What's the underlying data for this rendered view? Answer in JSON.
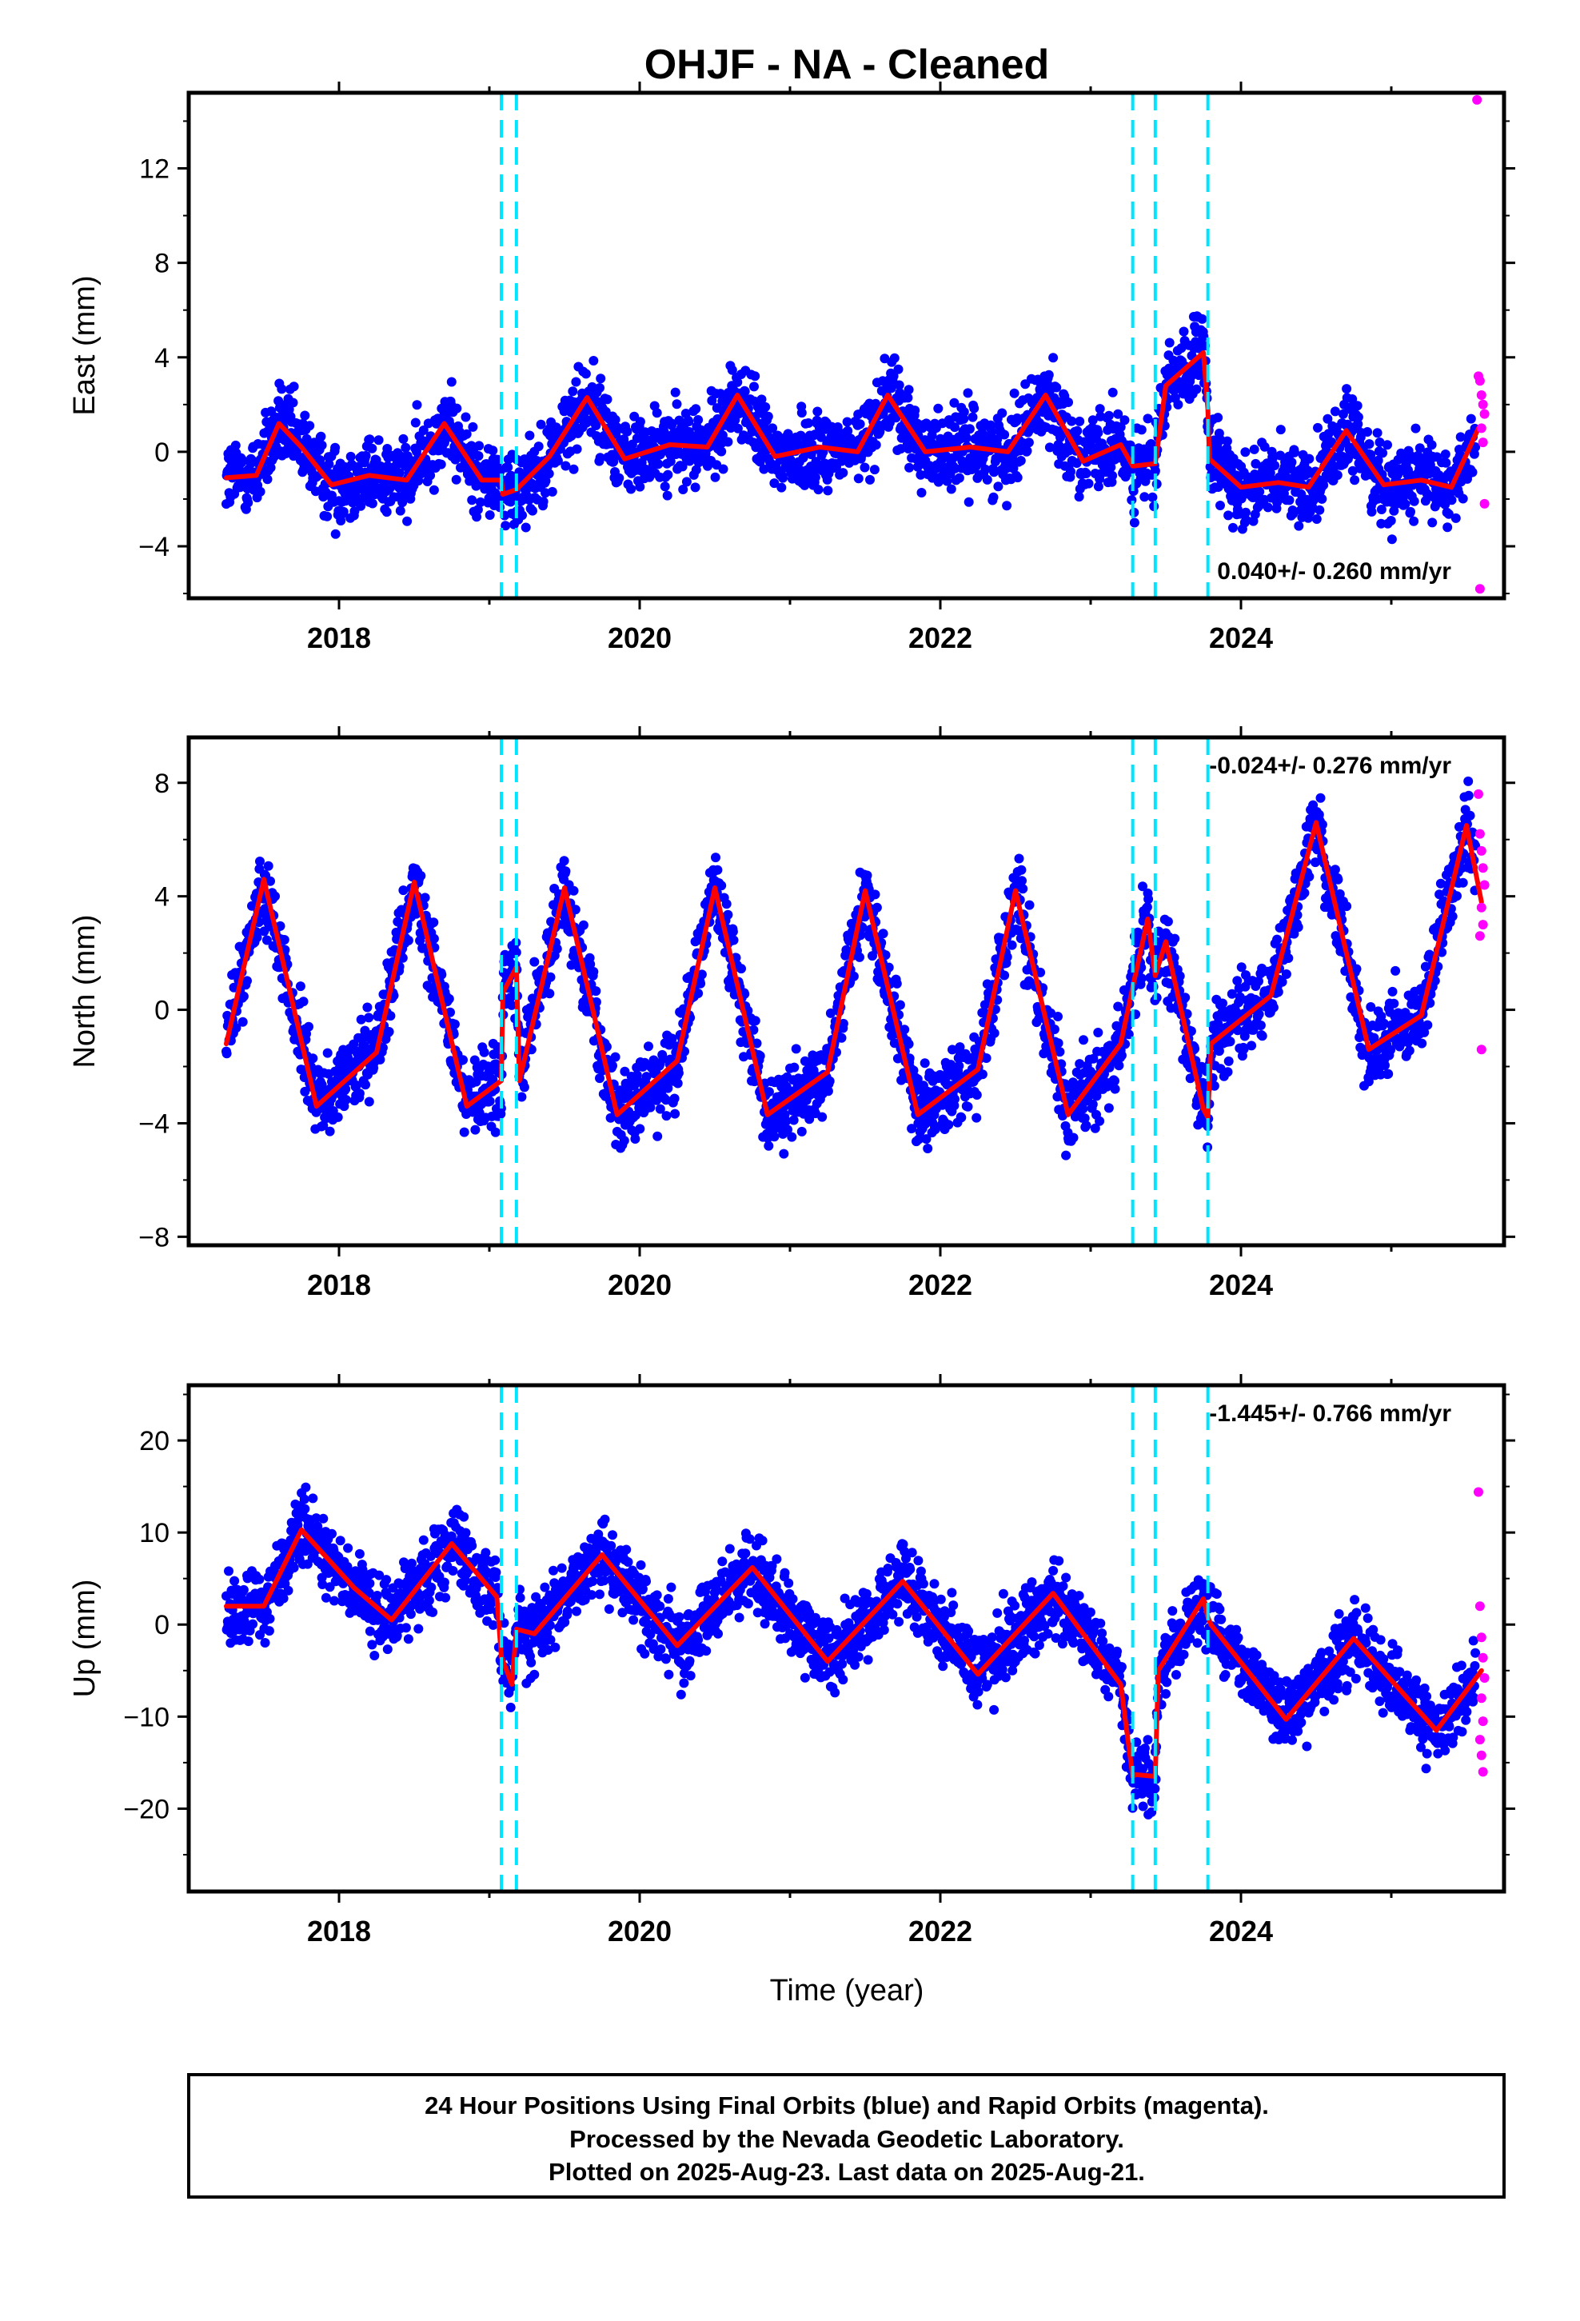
{
  "title": "OHJF  - NA - Cleaned",
  "xlabel": "Time (year)",
  "footer": {
    "line1": "24 Hour Positions Using Final Orbits (blue) and Rapid Orbits (magenta).",
    "line2": "Processed by the Nevada Geodetic Laboratory.",
    "line3": "Plotted on 2025-Aug-23. Last data on 2025-Aug-21."
  },
  "colors": {
    "final_orbits": "#0000ff",
    "rapid_orbits": "#ff00ff",
    "model_fit": "#ff0000",
    "equipment_change": "#00e5ff"
  },
  "chart_data": [
    {
      "type": "scatter",
      "name": "East",
      "ylabel": "East (mm)",
      "rate_text": "0.040+/- 0.260 mm/yr",
      "rate_position": "bottom-right",
      "xlim": [
        2017.0,
        2025.75
      ],
      "ylim": [
        -6.2,
        15.2
      ],
      "yticks": [
        -4,
        0,
        4,
        8,
        12
      ],
      "xticks": [
        2018,
        2020,
        2022,
        2024
      ],
      "grid": false,
      "event_lines": [
        2019.08,
        2019.18,
        2023.28,
        2023.43,
        2023.78
      ],
      "fit_curve": {
        "x": [
          2017.25,
          2017.45,
          2017.6,
          2017.75,
          2017.95,
          2018.2,
          2018.45,
          2018.7,
          2018.95,
          2019.08,
          2019.09,
          2019.18,
          2019.4,
          2019.65,
          2019.9,
          2020.2,
          2020.45,
          2020.65,
          2020.9,
          2021.2,
          2021.45,
          2021.65,
          2021.9,
          2022.2,
          2022.45,
          2022.7,
          2022.95,
          2023.2,
          2023.28,
          2023.29,
          2023.43,
          2023.5,
          2023.75,
          2023.78,
          2023.79,
          2024.0,
          2024.25,
          2024.45,
          2024.7,
          2024.95,
          2025.2,
          2025.4,
          2025.58
        ],
        "y": [
          -1.1,
          -1.0,
          1.2,
          0.2,
          -1.4,
          -1.0,
          -1.2,
          1.2,
          -1.2,
          -1.2,
          -1.8,
          -1.6,
          -0.2,
          2.3,
          -0.3,
          0.3,
          0.2,
          2.4,
          -0.2,
          0.2,
          0.0,
          2.4,
          0.0,
          0.2,
          0.0,
          2.4,
          -0.4,
          0.3,
          -0.6,
          -0.6,
          -0.5,
          2.8,
          4.2,
          1.8,
          -0.3,
          -1.5,
          -1.3,
          -1.5,
          0.9,
          -1.4,
          -1.2,
          -1.5,
          1.0
        ]
      },
      "rapid_points": {
        "x": [
          2025.57,
          2025.58,
          2025.59,
          2025.6,
          2025.61,
          2025.62,
          2025.6,
          2025.61,
          2025.62,
          2025.59
        ],
        "y": [
          14.9,
          3.2,
          3.0,
          2.4,
          2.0,
          1.6,
          1.0,
          0.4,
          -2.2,
          -5.8
        ]
      }
    },
    {
      "type": "scatter",
      "name": "North",
      "ylabel": "North (mm)",
      "rate_text": "-0.024+/- 0.276 mm/yr",
      "rate_position": "top-right",
      "xlim": [
        2017.0,
        2025.75
      ],
      "ylim": [
        -8.3,
        9.6
      ],
      "yticks": [
        -8,
        -4,
        0,
        4,
        8
      ],
      "xticks": [
        2018,
        2020,
        2022,
        2024
      ],
      "grid": false,
      "event_lines": [
        2019.08,
        2019.18,
        2023.28,
        2023.43,
        2023.78
      ],
      "fit_curve": {
        "x": [
          2017.25,
          2017.5,
          2017.85,
          2018.25,
          2018.5,
          2018.85,
          2019.08,
          2019.09,
          2019.18,
          2019.2,
          2019.5,
          2019.85,
          2020.25,
          2020.5,
          2020.85,
          2021.25,
          2021.5,
          2021.85,
          2022.25,
          2022.5,
          2022.85,
          2023.2,
          2023.28,
          2023.38,
          2023.43,
          2023.5,
          2023.75,
          2023.78,
          2023.8,
          2024.2,
          2024.5,
          2024.85,
          2025.2,
          2025.5,
          2025.6
        ],
        "y": [
          -1.2,
          4.6,
          -3.4,
          -1.5,
          4.5,
          -3.4,
          -2.5,
          0.6,
          1.5,
          -2.5,
          4.3,
          -3.7,
          -1.8,
          4.3,
          -3.7,
          -2.2,
          4.2,
          -3.7,
          -2.1,
          4.2,
          -3.7,
          -1.2,
          0.8,
          3.2,
          1.2,
          2.4,
          -3.5,
          -3.8,
          -1.2,
          0.5,
          6.6,
          -1.4,
          -0.2,
          6.5,
          3.8
        ]
      },
      "rapid_points": {
        "x": [
          2025.58,
          2025.59,
          2025.6,
          2025.61,
          2025.62,
          2025.6,
          2025.61,
          2025.59,
          2025.6
        ],
        "y": [
          7.6,
          6.2,
          5.6,
          5.0,
          4.4,
          3.6,
          3.0,
          2.6,
          -1.4
        ]
      }
    },
    {
      "type": "scatter",
      "name": "Up",
      "ylabel": "Up (mm)",
      "rate_text": "-1.445+/- 0.766 mm/yr",
      "rate_position": "top-right",
      "xlim": [
        2017.0,
        2025.75
      ],
      "ylim": [
        -29.0,
        26.0
      ],
      "yticks": [
        -20,
        -10,
        0,
        10,
        20
      ],
      "xticks": [
        2018,
        2020,
        2022,
        2024
      ],
      "grid": false,
      "event_lines": [
        2019.08,
        2019.18,
        2023.28,
        2023.43,
        2023.78
      ],
      "fit_curve": {
        "x": [
          2017.25,
          2017.5,
          2017.75,
          2018.1,
          2018.35,
          2018.75,
          2019.05,
          2019.08,
          2019.15,
          2019.18,
          2019.3,
          2019.75,
          2020.25,
          2020.75,
          2021.25,
          2021.75,
          2022.25,
          2022.75,
          2023.2,
          2023.28,
          2023.3,
          2023.43,
          2023.45,
          2023.75,
          2023.78,
          2023.8,
          2024.3,
          2024.75,
          2025.3,
          2025.6
        ],
        "y": [
          2.0,
          2.0,
          10.3,
          4.0,
          0.5,
          8.8,
          3.0,
          -3.5,
          -6.5,
          -0.5,
          -1.0,
          7.6,
          -2.3,
          6.2,
          -4.0,
          4.7,
          -5.4,
          3.4,
          -6.5,
          -16.5,
          -16.3,
          -16.5,
          -5.0,
          2.8,
          0.8,
          0.0,
          -10.3,
          -1.5,
          -11.5,
          -5.0
        ]
      },
      "rapid_points": {
        "x": [
          2025.58,
          2025.59,
          2025.6,
          2025.61,
          2025.62,
          2025.6,
          2025.61,
          2025.59,
          2025.6,
          2025.61
        ],
        "y": [
          14.4,
          2.0,
          -1.4,
          -3.6,
          -5.8,
          -8.0,
          -10.5,
          -12.5,
          -14.2,
          -16.0
        ]
      }
    }
  ]
}
